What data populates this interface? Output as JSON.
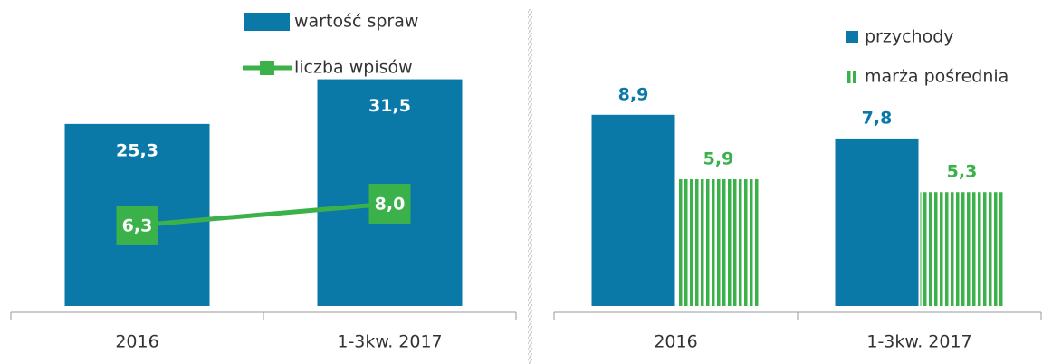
{
  "chart_data": [
    {
      "type": "bar",
      "categories": [
        "2016",
        "1-3kw. 2017"
      ],
      "series": [
        {
          "name": "wartość spraw",
          "type": "bar",
          "color": "#0a79a8",
          "values": [
            25.3,
            31.5
          ],
          "value_labels": [
            "25,3",
            "31,5"
          ]
        },
        {
          "name": "liczba wpisów",
          "type": "line",
          "axis": "y2",
          "color": "#3bb14a",
          "values": [
            6.3,
            8.0
          ],
          "value_labels": [
            "6,3",
            "8,0"
          ]
        }
      ],
      "ylim": [
        0,
        40
      ],
      "y2lim": [
        0,
        22.5
      ]
    },
    {
      "type": "bar",
      "categories": [
        "2016",
        "1-3kw. 2017"
      ],
      "series": [
        {
          "name": "przychody",
          "type": "bar",
          "color": "#0a79a8",
          "values": [
            8.9,
            7.8
          ],
          "value_labels": [
            "8,9",
            "7,8"
          ]
        },
        {
          "name": "marża pośrednia",
          "type": "bar",
          "pattern": "stripes",
          "color": "#3bb14a",
          "values": [
            5.9,
            5.3
          ],
          "value_labels": [
            "5,9",
            "5,3"
          ]
        }
      ],
      "ylim": [
        0,
        13.4
      ]
    }
  ]
}
